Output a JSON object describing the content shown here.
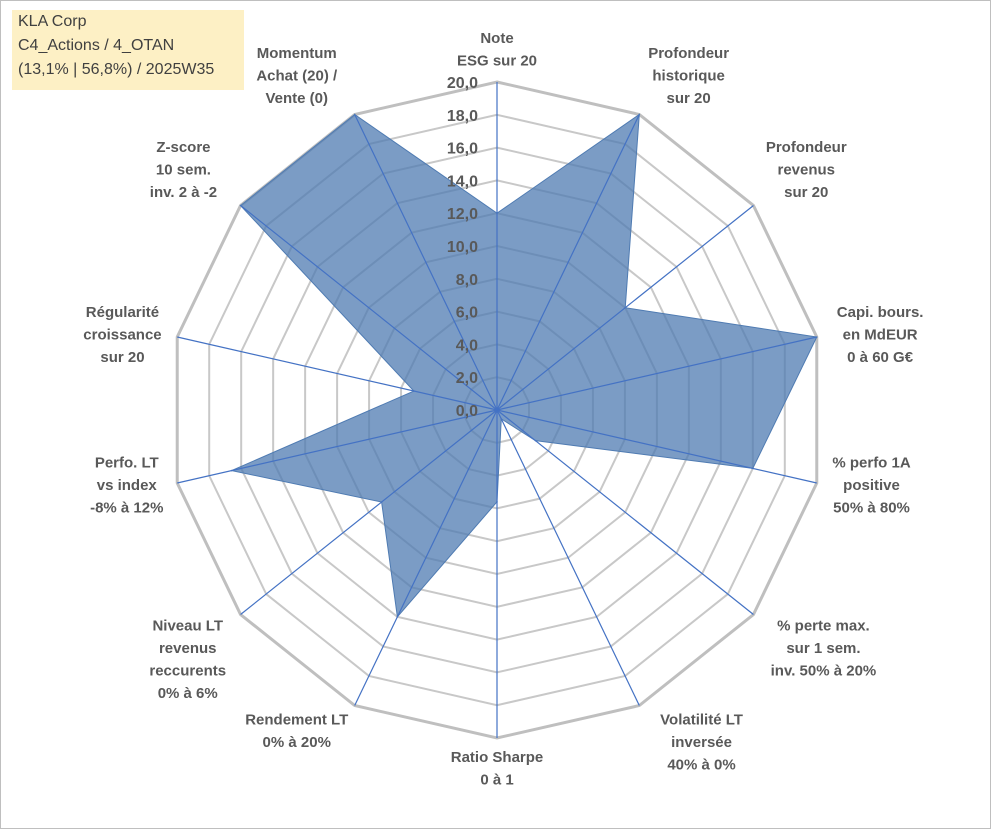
{
  "infobox": {
    "line1": "KLA Corp",
    "line2": "C4_Actions / 4_OTAN",
    "line3": "(13,1% | 56,8%) / 2025W35"
  },
  "chart_data": {
    "type": "radar",
    "rmin": 0,
    "rmax": 20,
    "tick_step": 2,
    "tick_labels": [
      "0,0",
      "2,0",
      "4,0",
      "6,0",
      "8,0",
      "10,0",
      "12,0",
      "14,0",
      "16,0",
      "18,0",
      "20,0"
    ],
    "axes": [
      {
        "label": [
          "Note",
          "ESG sur 20"
        ],
        "value": 12.0
      },
      {
        "label": [
          "Profondeur",
          "historique",
          "sur 20"
        ],
        "value": 20.0
      },
      {
        "label": [
          "Profondeur",
          "revenus",
          "sur 20"
        ],
        "value": 10.0
      },
      {
        "label": [
          "Capi. bours.",
          "en MdEUR",
          "0 à 60 G€"
        ],
        "value": 20.0
      },
      {
        "label": [
          "% perfo 1A",
          "positive",
          "50% à 80%"
        ],
        "value": 16.0
      },
      {
        "label": [
          "% perte max.",
          "sur 1 sem.",
          "inv. 50% à 20%"
        ],
        "value": 3.0
      },
      {
        "label": [
          "Volatilité LT",
          "inversée",
          "40% à 0%"
        ],
        "value": 0.6
      },
      {
        "label": [
          "Ratio Sharpe",
          "0 à 1"
        ],
        "value": 5.6
      },
      {
        "label": [
          "Rendement LT",
          "0% à 20%"
        ],
        "value": 14.0
      },
      {
        "label": [
          "Niveau LT",
          "revenus",
          "reccurents",
          "0% à 6%"
        ],
        "value": 9.0
      },
      {
        "label": [
          "Perfo. LT",
          "vs index",
          "-8% à 12%"
        ],
        "value": 16.6
      },
      {
        "label": [
          "Régularité",
          "croissance",
          "sur 20"
        ],
        "value": 5.2
      },
      {
        "label": [
          "Z-score",
          "10 sem.",
          "inv. 2 à -2"
        ],
        "value": 20.0
      },
      {
        "label": [
          "Momentum",
          "Achat (20) /",
          "Vente (0)"
        ],
        "value": 20.0
      }
    ],
    "colors": {
      "fill": "#4f7bb2",
      "fill_opacity": 0.75,
      "spoke": "#4472c4",
      "grid": "#c8c8c8",
      "outer": "#bfbfbf"
    }
  }
}
